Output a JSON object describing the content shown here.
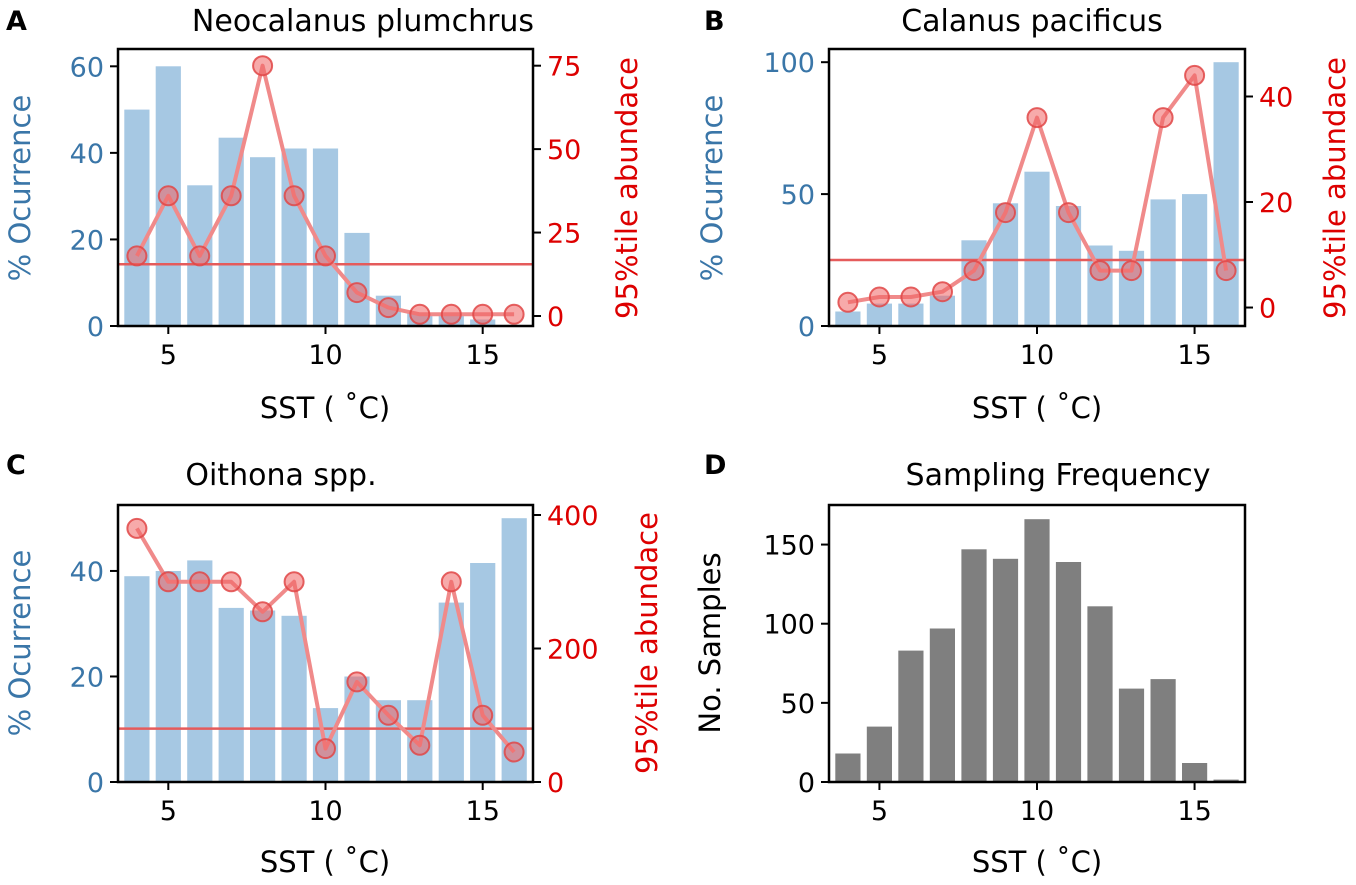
{
  "figure": {
    "colors": {
      "bar_blue": "#a6c8e3",
      "axis_blue": "#3a76a8",
      "red": "#dd0000",
      "line_red": "#f08a8a",
      "threshold": "#e55b5b",
      "gray": "#7f7f7f",
      "black": "#000000"
    }
  },
  "chart_data": [
    {
      "id": "A",
      "type": "bar",
      "panel_label": "A",
      "title": "Neocalanus plumchrus",
      "xlabel": "SST ( $^\\circ$C)",
      "xlabel_display": "SST ( ˚C)",
      "ylabel": "% Ocurrence",
      "y2label": "95%tile abundace",
      "x": [
        4,
        5,
        6,
        7,
        8,
        9,
        10,
        11,
        12,
        13,
        14,
        15,
        16
      ],
      "xlim": [
        3.4,
        16.6
      ],
      "xticks": [
        5,
        10,
        15
      ],
      "ylim": [
        0,
        64
      ],
      "yticks": [
        0,
        20,
        40,
        60
      ],
      "bars": [
        50,
        60,
        32.5,
        43.5,
        39,
        41,
        41,
        21.5,
        7,
        3,
        3,
        1.5,
        0
      ],
      "y2lim": [
        -3,
        80
      ],
      "y2ticks": [
        0,
        25,
        50,
        75
      ],
      "line": [
        18,
        36,
        18,
        36,
        75,
        36,
        18,
        7,
        2.5,
        0.5,
        0.5,
        0.5,
        0.5
      ],
      "threshold": 15.5
    },
    {
      "id": "B",
      "type": "bar",
      "panel_label": "B",
      "title": "Calanus pacificus",
      "xlabel": "SST ( $^\\circ$C)",
      "xlabel_display": "SST ( ˚C)",
      "ylabel": "% Ocurrence",
      "y2label": "95%tile abundace",
      "x": [
        4,
        5,
        6,
        7,
        8,
        9,
        10,
        11,
        12,
        13,
        14,
        15,
        16
      ],
      "xlim": [
        3.4,
        16.6
      ],
      "xticks": [
        5,
        10,
        15
      ],
      "ylim": [
        0,
        105
      ],
      "yticks": [
        0,
        50,
        100
      ],
      "bars": [
        5.5,
        8.5,
        8.5,
        11.5,
        32.5,
        46.5,
        58.5,
        45.5,
        30.5,
        28.5,
        48,
        50,
        100
      ],
      "y2lim": [
        -3.5,
        49
      ],
      "y2ticks": [
        0,
        20,
        40
      ],
      "line": [
        1,
        2,
        2,
        3,
        7,
        18,
        36,
        18,
        7,
        7,
        36,
        44,
        7
      ],
      "threshold": 9
    },
    {
      "id": "C",
      "type": "bar",
      "panel_label": "C",
      "title": "Oithona spp.",
      "xlabel": "SST ( $^\\circ$C)",
      "xlabel_display": "SST ( ˚C)",
      "ylabel": "% Ocurrence",
      "y2label": "95%tile abundace",
      "x": [
        4,
        5,
        6,
        7,
        8,
        9,
        10,
        11,
        12,
        13,
        14,
        15,
        16
      ],
      "xlim": [
        3.4,
        16.6
      ],
      "xticks": [
        5,
        10,
        15
      ],
      "ylim": [
        0,
        52.5
      ],
      "yticks": [
        0,
        20,
        40
      ],
      "bars": [
        39,
        40,
        42,
        33,
        32.5,
        31.5,
        14,
        20,
        15.5,
        15.5,
        34,
        41.5,
        50
      ],
      "y2lim": [
        0,
        415
      ],
      "y2ticks": [
        0,
        200,
        400
      ],
      "line": [
        380,
        300,
        300,
        300,
        255,
        300,
        50,
        150,
        100,
        55,
        300,
        100,
        45
      ],
      "threshold": 80
    },
    {
      "id": "D",
      "type": "bar",
      "panel_label": "D",
      "title": "Sampling Frequency",
      "xlabel": "SST ( $^\\circ$C)",
      "xlabel_display": "SST ( ˚C)",
      "ylabel": "No. Samples",
      "x": [
        4,
        5,
        6,
        7,
        8,
        9,
        10,
        11,
        12,
        13,
        14,
        15,
        16
      ],
      "xlim": [
        3.4,
        16.6
      ],
      "xticks": [
        5,
        10,
        15
      ],
      "ylim": [
        0,
        175
      ],
      "yticks": [
        0,
        50,
        100,
        150
      ],
      "bars": [
        18,
        35,
        83,
        97,
        147,
        141,
        166,
        139,
        111,
        59,
        65,
        12,
        1.5
      ]
    }
  ]
}
